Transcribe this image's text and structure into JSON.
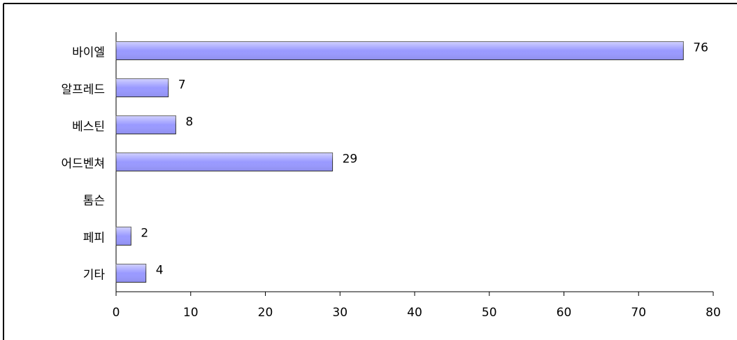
{
  "chart_data": {
    "type": "bar",
    "orientation": "horizontal",
    "categories": [
      "바이엘",
      "알프레드",
      "베스틴",
      "어드벤쳐",
      "톰슨",
      "페피",
      "기타"
    ],
    "values": [
      76,
      7,
      8,
      29,
      null,
      2,
      4
    ],
    "color": "#9999ff",
    "xlim": [
      0,
      80
    ],
    "xticks": [
      0,
      10,
      20,
      30,
      40,
      50,
      60,
      70,
      80
    ],
    "grid": false
  }
}
